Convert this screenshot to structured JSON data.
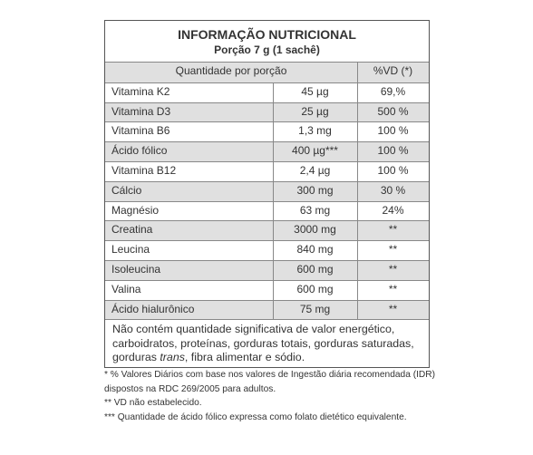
{
  "header": {
    "title": "INFORMAÇÃO NUTRICIONAL",
    "subtitle": "Porção 7 g (1 sachê)"
  },
  "table": {
    "columns": [
      "Quantidade por porção",
      "%VD (*)"
    ],
    "rows": [
      [
        "Vitamina K2",
        "45 µg",
        "69,%"
      ],
      [
        "Vitamina D3",
        "25 µg",
        "500 %"
      ],
      [
        "Vitamina B6",
        "1,3 mg",
        "100 %"
      ],
      [
        "Ácido fólico",
        "400 µg***",
        "100 %"
      ],
      [
        "Vitamina B12",
        "2,4 µg",
        "100 %"
      ],
      [
        "Cálcio",
        "300 mg",
        "30 %"
      ],
      [
        "Magnésio",
        "63 mg",
        "24%"
      ],
      [
        "Creatina",
        "3000 mg",
        "**"
      ],
      [
        "Leucina",
        "840 mg",
        "**"
      ],
      [
        "Isoleucina",
        "600 mg",
        "**"
      ],
      [
        "Valina",
        "600 mg",
        "**"
      ],
      [
        "Ácido hialurônico",
        "75 mg",
        "**"
      ]
    ]
  },
  "note": [
    "Não contém quantidade significativa de valor energético, carboidratos, proteínas, gorduras totais, gorduras saturadas, gorduras ",
    "trans",
    ", fibra alimentar e sódio."
  ],
  "footnotes": [
    "* % Valores Diários com base nos valores de Ingestão diária recomendada (IDR) dispostos na RDC 269/2005 para adultos.",
    "** VD não estabelecido.",
    "*** Quantidade de ácido fólico expressa como folato dietético equivalente."
  ]
}
